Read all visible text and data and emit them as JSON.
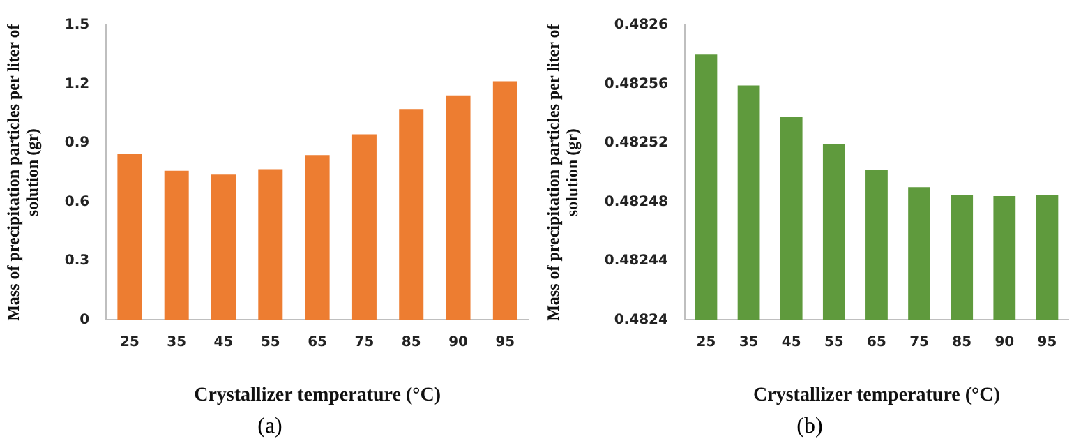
{
  "chart_data": [
    {
      "type": "bar",
      "categories": [
        "25",
        "35",
        "45",
        "55",
        "65",
        "75",
        "85",
        "90",
        "95"
      ],
      "values": [
        0.844,
        0.759,
        0.739,
        0.767,
        0.839,
        0.944,
        1.073,
        1.142,
        1.214
      ],
      "color": "#ed7d31",
      "ylim": [
        0,
        1.5
      ],
      "yticks": [
        0,
        0.3,
        0.6,
        0.9,
        1.2,
        1.5
      ],
      "xlabel": "Crystallizer temperature (°C)",
      "ylabel": "Mass of precipitation particles per liter of solution (gr)",
      "annotations": [
        "(a)"
      ],
      "grid": false,
      "legend": false
    },
    {
      "type": "bar",
      "categories": [
        "25",
        "35",
        "45",
        "55",
        "65",
        "75",
        "85",
        "90",
        "95"
      ],
      "values": [
        0.48258,
        0.482559,
        0.482538,
        0.482519,
        0.482502,
        0.48249,
        0.482485,
        0.482484,
        0.482485
      ],
      "color": "#5f9a3d",
      "ylim": [
        0.4824,
        0.4826
      ],
      "yticks": [
        0.4824,
        0.48244,
        0.48248,
        0.48252,
        0.48256,
        0.4826
      ],
      "xlabel": "Crystallizer temperature (°C)",
      "ylabel": "Mass of precipitation particles per liter of solution (gr)",
      "annotations": [
        "(b)"
      ],
      "grid": false,
      "legend": false
    }
  ]
}
